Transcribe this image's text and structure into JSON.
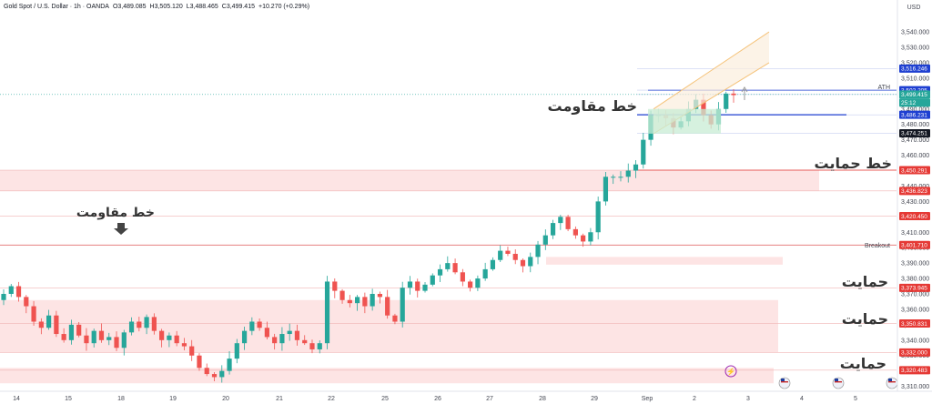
{
  "header": {
    "symbol": "Gold Spot / U.S. Dollar · 1h · OANDA",
    "open": "O3,489.085",
    "high": "H3,505.120",
    "low": "L3,488.465",
    "close": "C3,499.415",
    "change": "+10.270 (+0.29%)"
  },
  "axis": {
    "currency": "USD"
  },
  "colors": {
    "up": "#26a69a",
    "down": "#ef5350",
    "zone": "#fde4e4",
    "channel": "#fbeedd",
    "channel_line": "#f5c37a",
    "blue": "#1e3fd1",
    "red_badge": "#e53935",
    "text": "#333333"
  },
  "annotations": {
    "resistance_top": "خط مقاومت",
    "resistance_left": "خط مقاومت",
    "support_main": "خط حمایت",
    "support_1": "حمایت",
    "support_2": "حمایت",
    "support_3": "حمایت",
    "ath": "ATH",
    "breakout": "Breakout",
    "countdown": "25:12"
  },
  "chart_data": {
    "type": "candlestick",
    "x_ticks": [
      "14",
      "15",
      "18",
      "19",
      "20",
      "21",
      "22",
      "25",
      "26",
      "27",
      "28",
      "29",
      "Sep",
      "2",
      "3",
      "4",
      "5"
    ],
    "y_ticks": [
      3310,
      3320,
      3330,
      3340,
      3350,
      3360,
      3370,
      3380,
      3390,
      3400,
      3410,
      3420,
      3430,
      3440,
      3450,
      3460,
      3470,
      3480,
      3490,
      3500,
      3510,
      3520,
      3530,
      3540
    ],
    "ylim": [
      3308,
      3556
    ],
    "price_badges": [
      {
        "value": "3,516.246",
        "price": 3516.246,
        "color": "#1e3fd1"
      },
      {
        "value": "3,502.205",
        "price": 3502.205,
        "color": "#1e3fd1"
      },
      {
        "value": "3,499.415",
        "price": 3499.415,
        "color": "#26a69a"
      },
      {
        "value": "3,486.231",
        "price": 3486.231,
        "color": "#1e3fd1"
      },
      {
        "value": "3,474.251",
        "price": 3474.251,
        "color": "#131722"
      },
      {
        "value": "3,450.291",
        "price": 3450.291,
        "color": "#e53935"
      },
      {
        "value": "3,436.823",
        "price": 3436.823,
        "color": "#e53935"
      },
      {
        "value": "3,420.450",
        "price": 3420.45,
        "color": "#e53935"
      },
      {
        "value": "3,401.710",
        "price": 3401.71,
        "color": "#e53935"
      },
      {
        "value": "3,373.945",
        "price": 3373.945,
        "color": "#e53935"
      },
      {
        "value": "3,350.831",
        "price": 3350.831,
        "color": "#e53935"
      },
      {
        "value": "3,332.000",
        "price": 3332.0,
        "color": "#e53935"
      },
      {
        "value": "3,320.483",
        "price": 3320.483,
        "color": "#e53935"
      }
    ],
    "close_path": [
      3370,
      3375,
      3368,
      3362,
      3352,
      3348,
      3356,
      3344,
      3340,
      3350,
      3343,
      3338,
      3346,
      3340,
      3342,
      3335,
      3345,
      3352,
      3348,
      3355,
      3346,
      3340,
      3343,
      3338,
      3336,
      3330,
      3322,
      3318,
      3316,
      3320,
      3328,
      3338,
      3346,
      3352,
      3348,
      3342,
      3338,
      3344,
      3346,
      3340,
      3338,
      3334,
      3338,
      3378,
      3372,
      3366,
      3364,
      3368,
      3362,
      3370,
      3368,
      3356,
      3352,
      3374,
      3378,
      3372,
      3376,
      3382,
      3386,
      3390,
      3384,
      3378,
      3374,
      3380,
      3386,
      3392,
      3398,
      3396,
      3392,
      3388,
      3394,
      3402,
      3408,
      3416,
      3420,
      3412,
      3408,
      3404,
      3410,
      3430,
      3446,
      3446,
      3446,
      3450,
      3454,
      3470,
      3486,
      3486,
      3484,
      3478,
      3482,
      3490,
      3496,
      3486,
      3480,
      3490,
      3500,
      3499
    ]
  }
}
